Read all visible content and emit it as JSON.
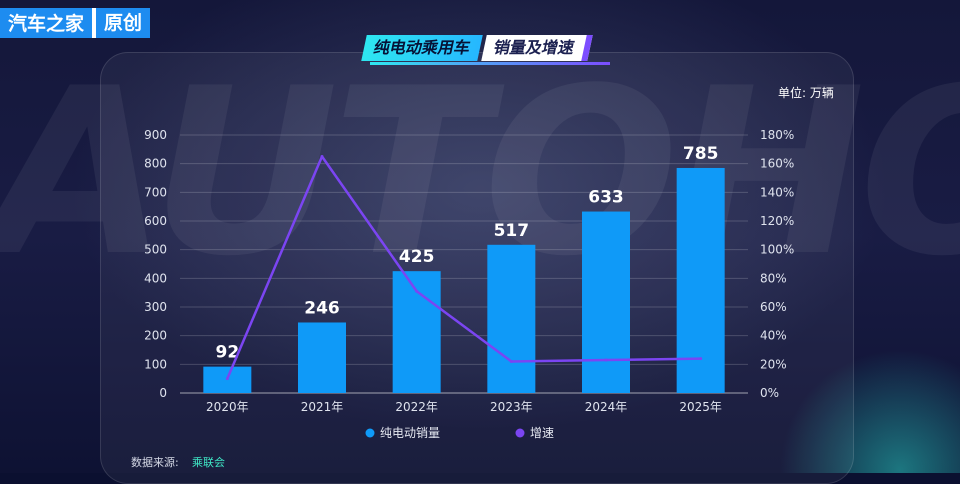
{
  "brand": {
    "name": "汽车之家",
    "tag": "原创"
  },
  "watermark": "AUTOHOME",
  "header": {
    "title_part1": "纯电动乘用车",
    "title_part2": "销量及增速"
  },
  "unit_label": "单位: 万辆",
  "source": {
    "label": "数据来源:",
    "value": "乘联会"
  },
  "colors": {
    "bar": "#0f9af8",
    "line": "#7b45f2",
    "accent": "#1d8cf0"
  },
  "chart_data": {
    "type": "bar",
    "categories": [
      "2020年",
      "2021年",
      "2022年",
      "2023年",
      "2024年",
      "2025年"
    ],
    "series": [
      {
        "name": "纯电动销量",
        "type": "bar",
        "axis": "left",
        "values": [
          92,
          246,
          425,
          517,
          633,
          785
        ],
        "data_labels": [
          "92",
          "246",
          "425",
          "517",
          "633",
          "785"
        ]
      },
      {
        "name": "增速",
        "type": "line",
        "axis": "right",
        "values": [
          10,
          165,
          71,
          22,
          23,
          24
        ]
      }
    ],
    "y_left": {
      "ticks": [
        "0",
        "100",
        "200",
        "300",
        "400",
        "500",
        "600",
        "700",
        "800",
        "900"
      ],
      "ylim": [
        0,
        900
      ]
    },
    "y_right": {
      "ticks": [
        "0%",
        "20%",
        "40%",
        "60%",
        "80%",
        "100%",
        "120%",
        "140%",
        "160%",
        "180%"
      ],
      "ylim": [
        0,
        180
      ]
    },
    "grid": true,
    "legend_position": "bottom"
  }
}
